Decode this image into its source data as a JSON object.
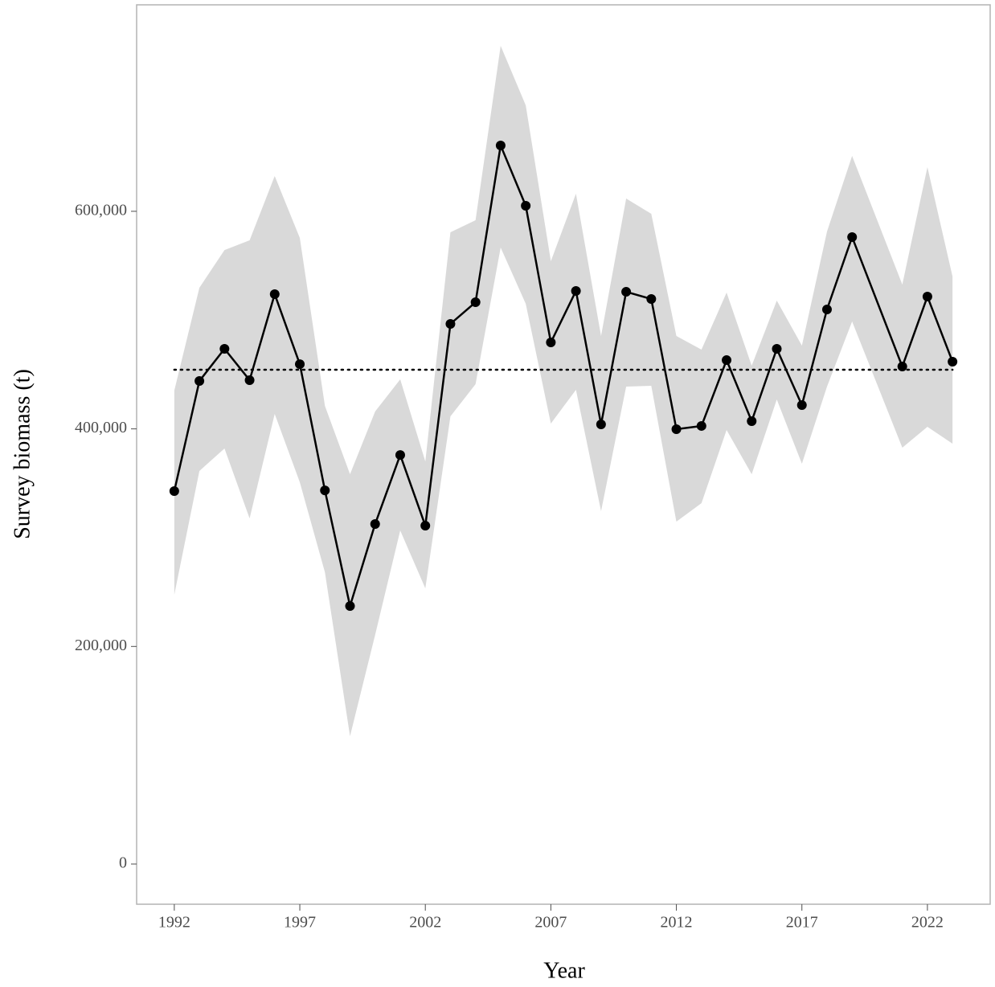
{
  "chart_data": {
    "type": "line",
    "x_label": "Year",
    "y_label": "Survey biomass (t)",
    "x": [
      1992,
      1993,
      1994,
      1995,
      1996,
      1997,
      1998,
      1999,
      2000,
      2001,
      2002,
      2003,
      2004,
      2005,
      2006,
      2007,
      2008,
      2009,
      2010,
      2011,
      2012,
      2013,
      2014,
      2015,
      2016,
      2017,
      2018,
      2019,
      2021,
      2022,
      2023
    ],
    "values": [
      342800,
      444000,
      473600,
      444800,
      523800,
      459500,
      343500,
      237200,
      312500,
      376000,
      311000,
      496500,
      516400,
      660500,
      605100,
      479500,
      526800,
      404100,
      526000,
      519400,
      399700,
      402700,
      463200,
      407100,
      473600,
      421900,
      509800,
      576300,
      457300,
      521600,
      461800
    ],
    "upper": [
      435200,
      529700,
      564400,
      573300,
      632400,
      575500,
      421100,
      358300,
      416000,
      445500,
      370100,
      580700,
      591800,
      752100,
      697400,
      554100,
      616200,
      485400,
      611700,
      597700,
      485400,
      472800,
      525300,
      458100,
      517900,
      476500,
      581400,
      650900,
      532700,
      640600,
      540100
    ],
    "lower": [
      247500,
      361300,
      382000,
      317700,
      413700,
      350900,
      268200,
      117500,
      210600,
      306600,
      253400,
      411500,
      441100,
      566700,
      515000,
      404900,
      435900,
      324300,
      438900,
      439600,
      314700,
      331700,
      399000,
      358300,
      427000,
      367900,
      438900,
      498700,
      382700,
      401900,
      386400
    ],
    "mean": 454400,
    "color": "#000000",
    "band_color": "#d9d9d9",
    "xlim": [
      1990.5,
      2024.5
    ],
    "ylim": [
      -36940,
      789800
    ],
    "xticks": [
      1992,
      1997,
      2002,
      2007,
      2012,
      2017,
      2022
    ],
    "yticks": [
      0,
      {
        "value": 200000,
        "label": "200,000"
      },
      {
        "value": 400000,
        "label": "400,000"
      },
      {
        "value": 600000,
        "label": "600,000"
      }
    ]
  }
}
